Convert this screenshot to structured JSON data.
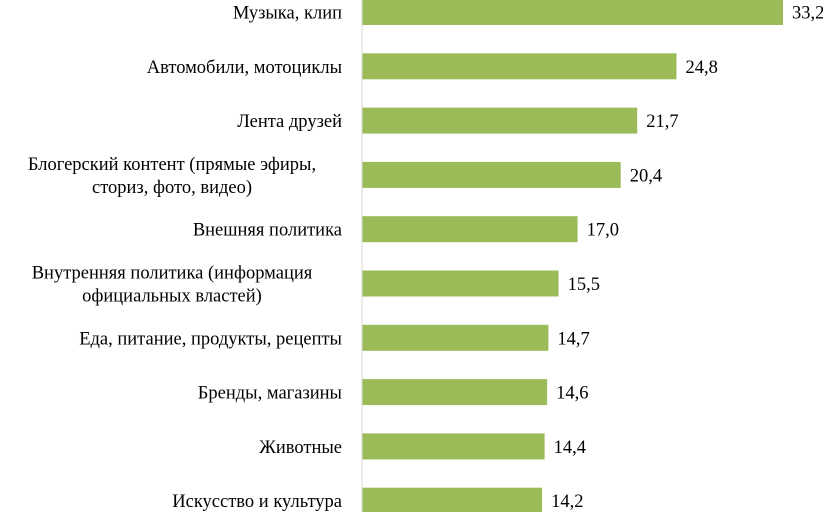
{
  "chart_data": {
    "type": "bar",
    "orientation": "horizontal",
    "title": "",
    "xlabel": "",
    "ylabel": "",
    "xlim": [
      0,
      33.2
    ],
    "grid": false,
    "legend": "none",
    "bar_color": "#9bbb59",
    "categories": [
      [
        "Музыка, клип"
      ],
      [
        "Автомобили, мотоциклы"
      ],
      [
        "Лента друзей"
      ],
      [
        "Блогерский контент (прямые эфиры,",
        "сториз, фото, видео)"
      ],
      [
        "Внешняя политика"
      ],
      [
        "Внутренняя политика (информация",
        "официальных властей)"
      ],
      [
        "Еда, питание, продукты, рецепты"
      ],
      [
        "Бренды, магазины"
      ],
      [
        "Животные"
      ],
      [
        "Искусство и культура"
      ]
    ],
    "values": [
      33.2,
      24.8,
      21.7,
      20.4,
      17.0,
      15.5,
      14.7,
      14.6,
      14.4,
      14.2
    ],
    "value_labels": [
      "33,2",
      "24,8",
      "21,7",
      "20,4",
      "17,0",
      "15,5",
      "14,7",
      "14,6",
      "14,4",
      "14,2"
    ]
  }
}
